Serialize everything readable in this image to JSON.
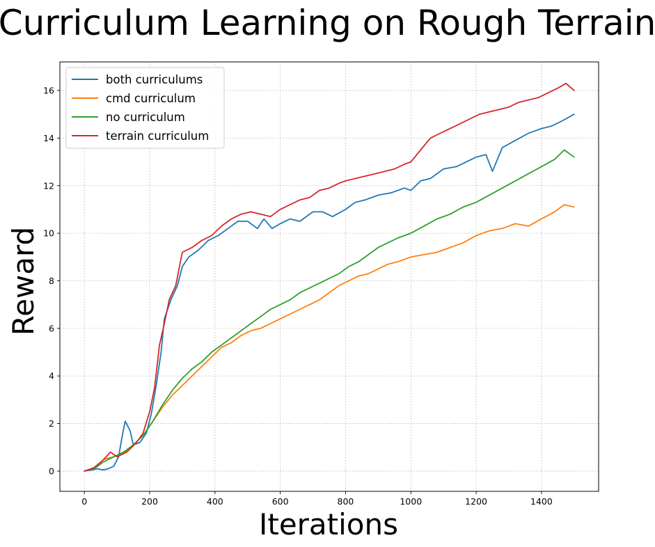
{
  "chart_data": {
    "type": "line",
    "title": "Curriculum Learning on Rough Terrain",
    "xlabel": "Iterations",
    "ylabel": "Reward",
    "xlim": [
      -75,
      1575
    ],
    "ylim": [
      -0.85,
      17.2
    ],
    "xticks": [
      0,
      200,
      400,
      600,
      800,
      1000,
      1200,
      1400
    ],
    "yticks": [
      0,
      2,
      4,
      6,
      8,
      10,
      12,
      14,
      16
    ],
    "grid": true,
    "legend": "top-left",
    "series": [
      {
        "name": "both curriculums",
        "color": "#1f77b4",
        "points": [
          [
            0,
            0
          ],
          [
            25,
            0.05
          ],
          [
            40,
            0.1
          ],
          [
            55,
            0.05
          ],
          [
            70,
            0.08
          ],
          [
            90,
            0.2
          ],
          [
            105,
            0.6
          ],
          [
            115,
            1.4
          ],
          [
            125,
            2.1
          ],
          [
            140,
            1.7
          ],
          [
            150,
            1.1
          ],
          [
            170,
            1.2
          ],
          [
            190,
            1.6
          ],
          [
            205,
            2.4
          ],
          [
            220,
            3.6
          ],
          [
            235,
            5.0
          ],
          [
            245,
            6.4
          ],
          [
            265,
            7.2
          ],
          [
            285,
            7.8
          ],
          [
            300,
            8.6
          ],
          [
            320,
            9.0
          ],
          [
            350,
            9.3
          ],
          [
            380,
            9.7
          ],
          [
            410,
            9.9
          ],
          [
            440,
            10.2
          ],
          [
            470,
            10.5
          ],
          [
            500,
            10.5
          ],
          [
            530,
            10.2
          ],
          [
            550,
            10.6
          ],
          [
            575,
            10.2
          ],
          [
            600,
            10.4
          ],
          [
            630,
            10.6
          ],
          [
            660,
            10.5
          ],
          [
            700,
            10.9
          ],
          [
            730,
            10.9
          ],
          [
            760,
            10.7
          ],
          [
            800,
            11.0
          ],
          [
            830,
            11.3
          ],
          [
            860,
            11.4
          ],
          [
            900,
            11.6
          ],
          [
            940,
            11.7
          ],
          [
            980,
            11.9
          ],
          [
            1000,
            11.8
          ],
          [
            1030,
            12.2
          ],
          [
            1060,
            12.3
          ],
          [
            1100,
            12.7
          ],
          [
            1140,
            12.8
          ],
          [
            1170,
            13.0
          ],
          [
            1200,
            13.2
          ],
          [
            1230,
            13.3
          ],
          [
            1250,
            12.6
          ],
          [
            1280,
            13.6
          ],
          [
            1320,
            13.9
          ],
          [
            1360,
            14.2
          ],
          [
            1400,
            14.4
          ],
          [
            1430,
            14.5
          ],
          [
            1460,
            14.7
          ],
          [
            1500,
            15.0
          ]
        ]
      },
      {
        "name": "cmd curriculum",
        "color": "#ff7f0e",
        "points": [
          [
            0,
            0
          ],
          [
            30,
            0.1
          ],
          [
            60,
            0.5
          ],
          [
            90,
            0.6
          ],
          [
            120,
            0.75
          ],
          [
            150,
            1.1
          ],
          [
            180,
            1.5
          ],
          [
            210,
            2.1
          ],
          [
            240,
            2.7
          ],
          [
            270,
            3.2
          ],
          [
            300,
            3.6
          ],
          [
            330,
            4.0
          ],
          [
            360,
            4.4
          ],
          [
            390,
            4.8
          ],
          [
            420,
            5.2
          ],
          [
            450,
            5.4
          ],
          [
            480,
            5.7
          ],
          [
            510,
            5.9
          ],
          [
            540,
            6.0
          ],
          [
            570,
            6.2
          ],
          [
            600,
            6.4
          ],
          [
            630,
            6.6
          ],
          [
            660,
            6.8
          ],
          [
            690,
            7.0
          ],
          [
            720,
            7.2
          ],
          [
            750,
            7.5
          ],
          [
            780,
            7.8
          ],
          [
            810,
            8.0
          ],
          [
            840,
            8.2
          ],
          [
            870,
            8.3
          ],
          [
            900,
            8.5
          ],
          [
            930,
            8.7
          ],
          [
            960,
            8.8
          ],
          [
            1000,
            9.0
          ],
          [
            1040,
            9.1
          ],
          [
            1080,
            9.2
          ],
          [
            1120,
            9.4
          ],
          [
            1160,
            9.6
          ],
          [
            1200,
            9.9
          ],
          [
            1240,
            10.1
          ],
          [
            1280,
            10.2
          ],
          [
            1320,
            10.4
          ],
          [
            1360,
            10.3
          ],
          [
            1400,
            10.6
          ],
          [
            1440,
            10.9
          ],
          [
            1470,
            11.2
          ],
          [
            1500,
            11.1
          ]
        ]
      },
      {
        "name": "no curriculum",
        "color": "#2ca02c",
        "points": [
          [
            0,
            0
          ],
          [
            30,
            0.1
          ],
          [
            60,
            0.4
          ],
          [
            90,
            0.6
          ],
          [
            120,
            0.8
          ],
          [
            150,
            1.1
          ],
          [
            180,
            1.5
          ],
          [
            210,
            2.1
          ],
          [
            240,
            2.8
          ],
          [
            270,
            3.4
          ],
          [
            300,
            3.9
          ],
          [
            330,
            4.3
          ],
          [
            360,
            4.6
          ],
          [
            390,
            5.0
          ],
          [
            420,
            5.3
          ],
          [
            450,
            5.6
          ],
          [
            480,
            5.9
          ],
          [
            510,
            6.2
          ],
          [
            540,
            6.5
          ],
          [
            570,
            6.8
          ],
          [
            600,
            7.0
          ],
          [
            630,
            7.2
          ],
          [
            660,
            7.5
          ],
          [
            690,
            7.7
          ],
          [
            720,
            7.9
          ],
          [
            750,
            8.1
          ],
          [
            780,
            8.3
          ],
          [
            810,
            8.6
          ],
          [
            840,
            8.8
          ],
          [
            870,
            9.1
          ],
          [
            900,
            9.4
          ],
          [
            930,
            9.6
          ],
          [
            960,
            9.8
          ],
          [
            1000,
            10.0
          ],
          [
            1040,
            10.3
          ],
          [
            1080,
            10.6
          ],
          [
            1120,
            10.8
          ],
          [
            1160,
            11.1
          ],
          [
            1200,
            11.3
          ],
          [
            1240,
            11.6
          ],
          [
            1280,
            11.9
          ],
          [
            1320,
            12.2
          ],
          [
            1360,
            12.5
          ],
          [
            1400,
            12.8
          ],
          [
            1440,
            13.1
          ],
          [
            1470,
            13.5
          ],
          [
            1500,
            13.2
          ]
        ]
      },
      {
        "name": "terrain curriculum",
        "color": "#d62728",
        "points": [
          [
            0,
            0
          ],
          [
            30,
            0.15
          ],
          [
            60,
            0.5
          ],
          [
            80,
            0.8
          ],
          [
            100,
            0.6
          ],
          [
            130,
            0.8
          ],
          [
            160,
            1.2
          ],
          [
            180,
            1.6
          ],
          [
            200,
            2.5
          ],
          [
            215,
            3.5
          ],
          [
            230,
            5.3
          ],
          [
            245,
            6.2
          ],
          [
            260,
            7.2
          ],
          [
            280,
            7.8
          ],
          [
            300,
            9.2
          ],
          [
            330,
            9.4
          ],
          [
            360,
            9.7
          ],
          [
            390,
            9.9
          ],
          [
            420,
            10.3
          ],
          [
            450,
            10.6
          ],
          [
            480,
            10.8
          ],
          [
            510,
            10.9
          ],
          [
            540,
            10.8
          ],
          [
            570,
            10.7
          ],
          [
            600,
            11.0
          ],
          [
            630,
            11.2
          ],
          [
            660,
            11.4
          ],
          [
            690,
            11.5
          ],
          [
            720,
            11.8
          ],
          [
            750,
            11.9
          ],
          [
            780,
            12.1
          ],
          [
            800,
            12.2
          ],
          [
            830,
            12.3
          ],
          [
            860,
            12.4
          ],
          [
            890,
            12.5
          ],
          [
            920,
            12.6
          ],
          [
            950,
            12.7
          ],
          [
            980,
            12.9
          ],
          [
            1000,
            13.0
          ],
          [
            1030,
            13.5
          ],
          [
            1060,
            14.0
          ],
          [
            1090,
            14.2
          ],
          [
            1120,
            14.4
          ],
          [
            1150,
            14.6
          ],
          [
            1180,
            14.8
          ],
          [
            1210,
            15.0
          ],
          [
            1240,
            15.1
          ],
          [
            1270,
            15.2
          ],
          [
            1300,
            15.3
          ],
          [
            1330,
            15.5
          ],
          [
            1360,
            15.6
          ],
          [
            1390,
            15.7
          ],
          [
            1420,
            15.9
          ],
          [
            1450,
            16.1
          ],
          [
            1475,
            16.3
          ],
          [
            1500,
            16.0
          ]
        ]
      }
    ]
  }
}
